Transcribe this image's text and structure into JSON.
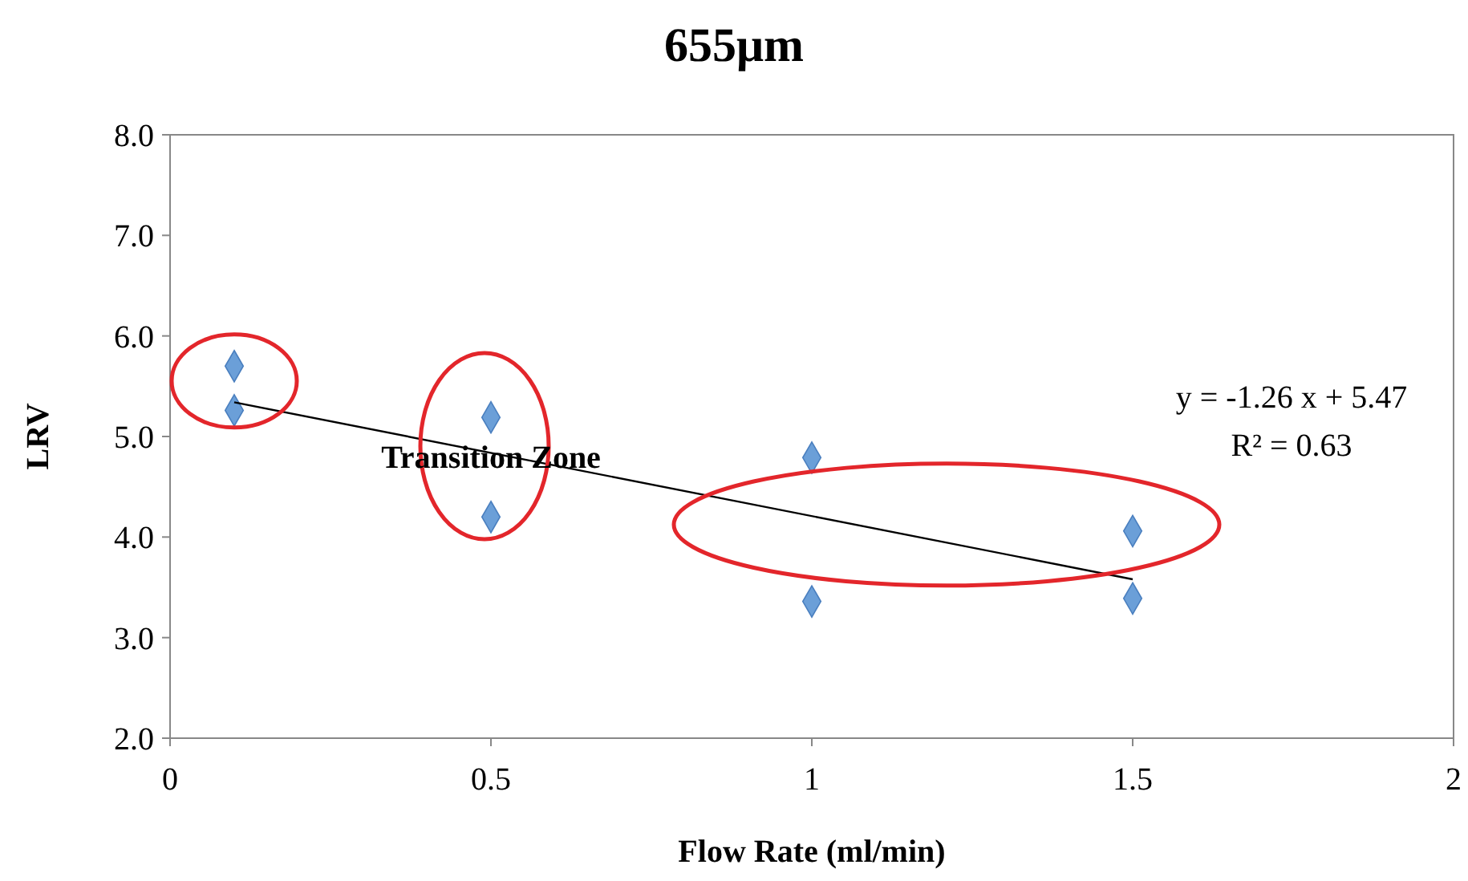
{
  "chart_data": {
    "type": "scatter",
    "title": "655μm",
    "xlabel": "Flow Rate (ml/min)",
    "ylabel": "LRV",
    "xlim": [
      0,
      2
    ],
    "xticks": [
      0,
      0.5,
      1,
      1.5,
      2
    ],
    "ylim": [
      2,
      8
    ],
    "yticks": [
      {
        "value": 2,
        "label": "2.0"
      },
      {
        "value": 3,
        "label": "3.0"
      },
      {
        "value": 4,
        "label": "4.0"
      },
      {
        "value": 5,
        "label": "5.0"
      },
      {
        "value": 6,
        "label": "6.0"
      },
      {
        "value": 7,
        "label": "7.0"
      },
      {
        "value": 8,
        "label": "8.0"
      }
    ],
    "series": [
      {
        "color": "#6b9fd8",
        "marker": "diamond",
        "x": [
          0.1,
          0.1,
          0.5,
          0.5,
          1,
          1,
          1.5,
          1.5
        ],
        "values": [
          5.7,
          5.26,
          5.19,
          4.2,
          4.79,
          3.36,
          4.06,
          3.39
        ]
      },
      {
        "type": "line",
        "color": "#000000",
        "marker": "none",
        "x": [
          0.1,
          1.5
        ],
        "values": [
          5.34,
          3.58
        ]
      }
    ],
    "annotations": [
      {
        "text": "Transition Zone",
        "x": 0.5,
        "y": 4.8
      },
      "y = -1.26 x + 5.47",
      "R² = 0.63"
    ],
    "grid": false
  }
}
